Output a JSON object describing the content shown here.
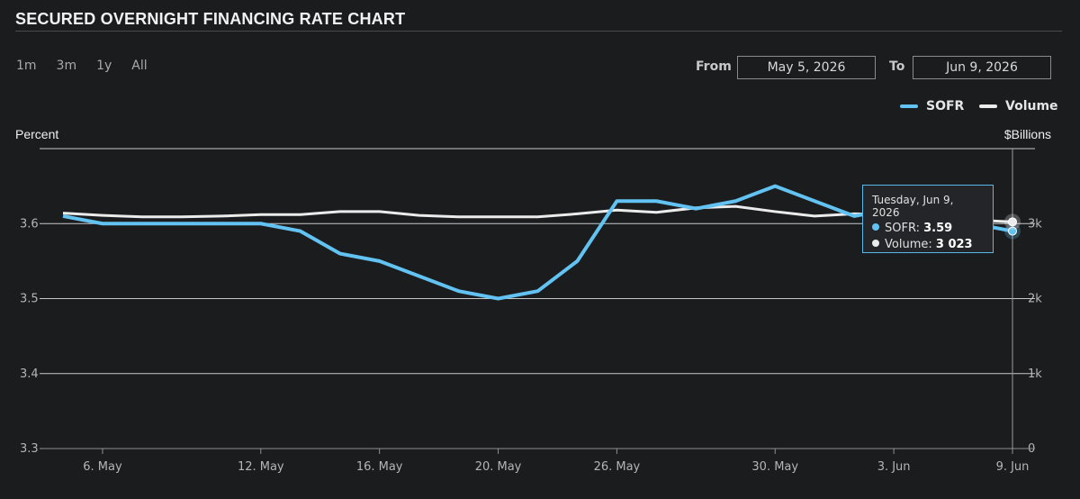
{
  "header": {
    "title": "SECURED OVERNIGHT FINANCING RATE CHART"
  },
  "ranges": [
    "1m",
    "3m",
    "1y",
    "All"
  ],
  "date_range": {
    "from_label": "From",
    "from_value": "May 5, 2026",
    "to_label": "To",
    "to_value": "Jun 9, 2026"
  },
  "colors": {
    "sofr": "#62c3f2",
    "volume": "#ebebeb",
    "grid": "#e6e6e6",
    "background": "#1b1c1e"
  },
  "tooltip": {
    "date": "Tuesday, Jun 9, 2026",
    "sofr_label": "SOFR:",
    "sofr_value": "3.59",
    "volume_label": "Volume:",
    "volume_value": "3 023"
  },
  "chart_data": {
    "type": "line",
    "ylabel_left": "Percent",
    "ylabel_right": "$Billions",
    "left_ticks": [
      "3.6",
      "3.5",
      "3.4",
      "3.3"
    ],
    "right_ticks": [
      "3k",
      "2k",
      "1k",
      "0"
    ],
    "x_ticks": [
      "6. May",
      "12. May",
      "16. May",
      "20. May",
      "26. May",
      "30. May",
      "3. Jun",
      "9. Jun"
    ],
    "ylim_left": [
      3.3,
      3.7
    ],
    "ylim_right": [
      0,
      4000
    ],
    "x": [
      "May 5",
      "May 6",
      "May 7",
      "May 8",
      "May 11",
      "May 12",
      "May 13",
      "May 14",
      "May 15",
      "May 18",
      "May 19",
      "May 20",
      "May 21",
      "May 22",
      "May 26",
      "May 27",
      "May 28",
      "May 29",
      "Jun 1",
      "Jun 2",
      "Jun 3",
      "Jun 4",
      "Jun 5",
      "Jun 8",
      "Jun 9"
    ],
    "series": [
      {
        "name": "SOFR",
        "axis": "left",
        "values": [
          3.61,
          3.6,
          3.6,
          3.6,
          3.6,
          3.6,
          3.59,
          3.56,
          3.55,
          3.53,
          3.51,
          3.5,
          3.51,
          3.55,
          3.63,
          3.63,
          3.62,
          3.63,
          3.65,
          3.63,
          3.61,
          3.62,
          3.63,
          3.6,
          3.59
        ]
      },
      {
        "name": "Volume",
        "axis": "right",
        "values": [
          3140,
          3110,
          3090,
          3090,
          3100,
          3120,
          3120,
          3160,
          3160,
          3110,
          3090,
          3090,
          3090,
          3130,
          3180,
          3150,
          3210,
          3230,
          3160,
          3100,
          3130,
          3120,
          3060,
          3050,
          3023
        ]
      }
    ],
    "grid": true,
    "legend_position": "top-right"
  }
}
